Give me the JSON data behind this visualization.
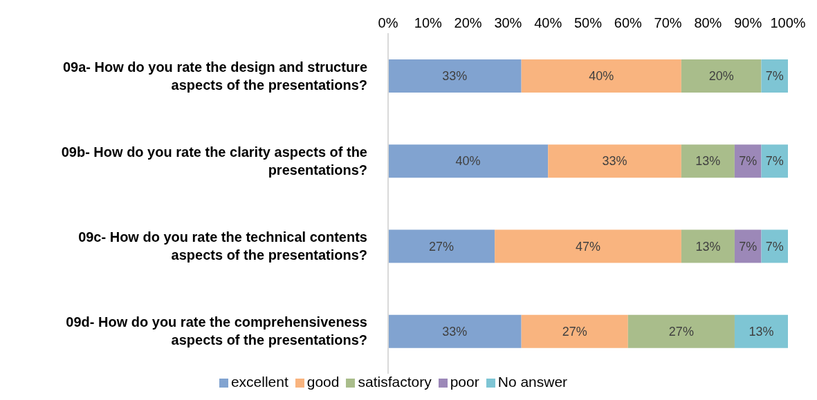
{
  "chart_data": {
    "type": "bar",
    "orientation": "horizontal",
    "stacked": true,
    "categories": [
      "09a- How do you rate the design and structure aspects of the presentations?",
      "09b- How do you rate the clarity aspects of the presentations?",
      "09c- How do you rate the technical contents aspects of the presentations?",
      "09d- How do you rate the comprehensiveness aspects of the presentations?"
    ],
    "series": [
      {
        "name": "excellent",
        "color": "#81a3d0",
        "values": [
          33.33,
          40,
          26.67,
          33.33
        ],
        "value_labels": [
          "33%",
          "40%",
          "27%",
          "33%"
        ]
      },
      {
        "name": "good",
        "color": "#f9b47f",
        "values": [
          40,
          33.33,
          46.67,
          26.67
        ],
        "value_labels": [
          "40%",
          "33%",
          "47%",
          "27%"
        ]
      },
      {
        "name": "satisfactory",
        "color": "#a9bd8b",
        "values": [
          20,
          13.33,
          13.33,
          26.67
        ],
        "value_labels": [
          "20%",
          "13%",
          "13%",
          "27%"
        ]
      },
      {
        "name": "poor",
        "color": "#9c88b8",
        "values": [
          null,
          6.67,
          6.67,
          null
        ],
        "value_labels": [
          null,
          "7%",
          "7%",
          null
        ]
      },
      {
        "name": "No answer",
        "color": "#7ec5d4",
        "values": [
          6.67,
          6.67,
          6.66,
          13.33
        ],
        "value_labels": [
          "7%",
          "7%",
          "7%",
          "13%"
        ]
      }
    ],
    "xlim": [
      0,
      100
    ],
    "xticks": [
      {
        "value": 0,
        "label": "0%"
      },
      {
        "value": 10,
        "label": "10%"
      },
      {
        "value": 20,
        "label": "20%"
      },
      {
        "value": 30,
        "label": "30%"
      },
      {
        "value": 40,
        "label": "40%"
      },
      {
        "value": 50,
        "label": "50%"
      },
      {
        "value": 60,
        "label": "60%"
      },
      {
        "value": 70,
        "label": "70%"
      },
      {
        "value": 80,
        "label": "80%"
      },
      {
        "value": 90,
        "label": "90%"
      },
      {
        "value": 100,
        "label": "100%"
      }
    ],
    "grid": false,
    "legend": "bottom"
  }
}
